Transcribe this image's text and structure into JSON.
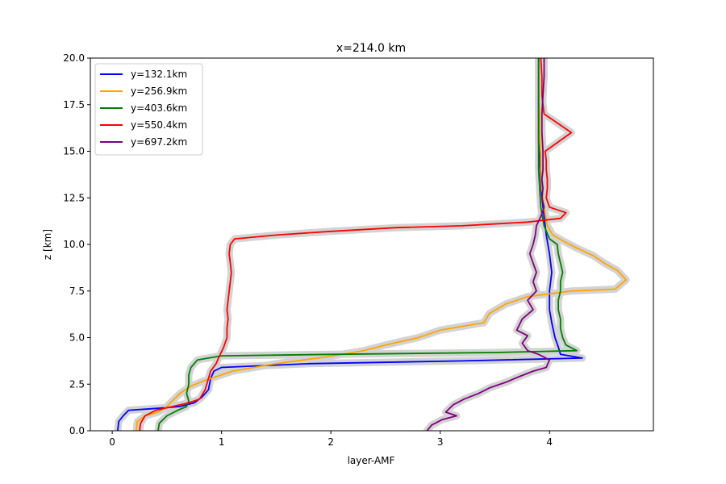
{
  "chart_data": {
    "type": "line",
    "title": "x=214.0 km",
    "xlabel": "layer-AMF",
    "ylabel": "z [km]",
    "xlim": [
      -0.2,
      4.95
    ],
    "ylim": [
      0,
      20
    ],
    "xticks": [
      0,
      1,
      2,
      3,
      4
    ],
    "yticks": [
      0.0,
      2.5,
      5.0,
      7.5,
      10.0,
      12.5,
      15.0,
      17.5,
      20.0
    ],
    "xtick_labels": [
      "0",
      "1",
      "2",
      "3",
      "4"
    ],
    "ytick_labels": [
      "0.0",
      "2.5",
      "5.0",
      "7.5",
      "10.0",
      "12.5",
      "15.0",
      "17.5",
      "20.0"
    ],
    "grid": false,
    "legend_position": "top-left",
    "shaded_band_color": "#d3d3d3",
    "series": [
      {
        "name": "y=132.1km",
        "color": "#0000ff",
        "points": [
          [
            0.05,
            0
          ],
          [
            0.06,
            0.5
          ],
          [
            0.1,
            0.8
          ],
          [
            0.15,
            1.1
          ],
          [
            0.4,
            1.2
          ],
          [
            0.62,
            1.3
          ],
          [
            0.75,
            1.5
          ],
          [
            0.82,
            1.8
          ],
          [
            0.88,
            2.2
          ],
          [
            0.9,
            2.8
          ],
          [
            0.93,
            3.2
          ],
          [
            1.0,
            3.4
          ],
          [
            1.8,
            3.6
          ],
          [
            3.2,
            3.75
          ],
          [
            4.3,
            3.9
          ],
          [
            4.1,
            4.1
          ],
          [
            4.08,
            4.5
          ],
          [
            4.05,
            5.0
          ],
          [
            4.02,
            5.8
          ],
          [
            4.0,
            6.5
          ],
          [
            4.0,
            7.5
          ],
          [
            4.02,
            8.5
          ],
          [
            4.0,
            9.5
          ],
          [
            3.97,
            10.5
          ],
          [
            3.95,
            11.5
          ],
          [
            3.93,
            12.5
          ],
          [
            3.92,
            13.5
          ],
          [
            3.91,
            14.5
          ],
          [
            3.9,
            15.5
          ],
          [
            3.9,
            16.5
          ],
          [
            3.9,
            17.5
          ],
          [
            3.9,
            18.5
          ],
          [
            3.9,
            20
          ]
        ]
      },
      {
        "name": "y=256.9km",
        "color": "#ffa500",
        "points": [
          [
            0.22,
            0
          ],
          [
            0.23,
            0.5
          ],
          [
            0.3,
            0.8
          ],
          [
            0.42,
            1.0
          ],
          [
            0.5,
            1.3
          ],
          [
            0.55,
            1.6
          ],
          [
            0.62,
            2.0
          ],
          [
            0.72,
            2.4
          ],
          [
            0.85,
            2.7
          ],
          [
            1.1,
            3.2
          ],
          [
            1.5,
            3.6
          ],
          [
            2.0,
            4.0
          ],
          [
            2.3,
            4.3
          ],
          [
            2.5,
            4.6
          ],
          [
            2.8,
            5.0
          ],
          [
            3.0,
            5.4
          ],
          [
            3.2,
            5.6
          ],
          [
            3.4,
            5.8
          ],
          [
            3.45,
            6.3
          ],
          [
            3.6,
            6.8
          ],
          [
            3.8,
            7.2
          ],
          [
            4.2,
            7.5
          ],
          [
            4.6,
            7.6
          ],
          [
            4.7,
            8.1
          ],
          [
            4.62,
            8.6
          ],
          [
            4.5,
            9.0
          ],
          [
            4.4,
            9.4
          ],
          [
            4.25,
            9.8
          ],
          [
            4.12,
            10.2
          ],
          [
            4.03,
            10.5
          ],
          [
            3.98,
            11.0
          ],
          [
            3.95,
            12.0
          ],
          [
            3.93,
            13.0
          ],
          [
            3.92,
            14.0
          ],
          [
            3.92,
            15.0
          ],
          [
            3.91,
            16.0
          ],
          [
            3.91,
            17.0
          ],
          [
            3.9,
            18.0
          ],
          [
            3.9,
            19.0
          ],
          [
            3.9,
            20
          ]
        ]
      },
      {
        "name": "y=403.6km",
        "color": "#008000",
        "points": [
          [
            0.42,
            0
          ],
          [
            0.43,
            0.4
          ],
          [
            0.5,
            0.8
          ],
          [
            0.6,
            1.1
          ],
          [
            0.68,
            1.3
          ],
          [
            0.7,
            1.6
          ],
          [
            0.68,
            2.0
          ],
          [
            0.7,
            2.5
          ],
          [
            0.7,
            3.0
          ],
          [
            0.72,
            3.4
          ],
          [
            0.78,
            3.8
          ],
          [
            1.0,
            4.02
          ],
          [
            2.0,
            4.1
          ],
          [
            3.5,
            4.2
          ],
          [
            4.25,
            4.3
          ],
          [
            4.15,
            4.6
          ],
          [
            4.12,
            5.0
          ],
          [
            4.1,
            5.5
          ],
          [
            4.1,
            6.0
          ],
          [
            4.08,
            6.5
          ],
          [
            4.08,
            7.0
          ],
          [
            4.1,
            7.5
          ],
          [
            4.1,
            8.0
          ],
          [
            4.12,
            8.5
          ],
          [
            4.1,
            9.0
          ],
          [
            4.08,
            9.5
          ],
          [
            4.07,
            10.0
          ],
          [
            4.0,
            10.3
          ],
          [
            3.95,
            11.0
          ],
          [
            3.92,
            12.0
          ],
          [
            3.91,
            13.0
          ],
          [
            3.9,
            14.0
          ],
          [
            3.9,
            15.0
          ],
          [
            3.9,
            16.0
          ],
          [
            3.9,
            17.0
          ],
          [
            3.9,
            18.0
          ],
          [
            3.9,
            19.0
          ],
          [
            3.9,
            20
          ]
        ]
      },
      {
        "name": "y=550.4km",
        "color": "#ff0000",
        "points": [
          [
            0.25,
            0
          ],
          [
            0.26,
            0.4
          ],
          [
            0.3,
            0.8
          ],
          [
            0.4,
            1.1
          ],
          [
            0.55,
            1.3
          ],
          [
            0.7,
            1.5
          ],
          [
            0.8,
            1.7
          ],
          [
            0.85,
            2.2
          ],
          [
            0.88,
            2.8
          ],
          [
            0.9,
            3.2
          ],
          [
            0.95,
            3.6
          ],
          [
            0.98,
            4.0
          ],
          [
            1.02,
            4.5
          ],
          [
            1.05,
            5.0
          ],
          [
            1.05,
            5.5
          ],
          [
            1.06,
            6.0
          ],
          [
            1.05,
            6.5
          ],
          [
            1.06,
            7.0
          ],
          [
            1.07,
            7.5
          ],
          [
            1.08,
            8.0
          ],
          [
            1.09,
            8.5
          ],
          [
            1.08,
            9.0
          ],
          [
            1.07,
            9.5
          ],
          [
            1.08,
            10.0
          ],
          [
            1.12,
            10.3
          ],
          [
            1.5,
            10.5
          ],
          [
            2.0,
            10.7
          ],
          [
            2.6,
            10.9
          ],
          [
            3.2,
            11.0
          ],
          [
            3.8,
            11.2
          ],
          [
            4.1,
            11.4
          ],
          [
            4.15,
            11.7
          ],
          [
            4.0,
            12.0
          ],
          [
            3.97,
            12.5
          ],
          [
            3.98,
            13.0
          ],
          [
            3.98,
            13.5
          ],
          [
            3.97,
            14.0
          ],
          [
            3.97,
            14.5
          ],
          [
            3.96,
            15.0
          ],
          [
            4.2,
            16.0
          ],
          [
            3.95,
            17.0
          ],
          [
            3.94,
            17.5
          ],
          [
            3.93,
            18.0
          ],
          [
            3.93,
            19.0
          ],
          [
            3.92,
            20
          ]
        ]
      },
      {
        "name": "y=697.2km",
        "color": "#800080",
        "points": [
          [
            2.88,
            0
          ],
          [
            2.92,
            0.3
          ],
          [
            3.02,
            0.6
          ],
          [
            3.15,
            0.8
          ],
          [
            3.05,
            1.0
          ],
          [
            3.12,
            1.4
          ],
          [
            3.22,
            1.7
          ],
          [
            3.35,
            2.0
          ],
          [
            3.45,
            2.3
          ],
          [
            3.6,
            2.6
          ],
          [
            3.72,
            2.9
          ],
          [
            3.85,
            3.2
          ],
          [
            3.97,
            3.4
          ],
          [
            4.0,
            3.8
          ],
          [
            3.9,
            4.1
          ],
          [
            3.8,
            4.3
          ],
          [
            3.75,
            4.7
          ],
          [
            3.8,
            5.1
          ],
          [
            3.7,
            5.4
          ],
          [
            3.75,
            6.0
          ],
          [
            3.85,
            6.5
          ],
          [
            3.8,
            7.0
          ],
          [
            3.88,
            7.5
          ],
          [
            3.85,
            8.0
          ],
          [
            3.88,
            8.5
          ],
          [
            3.85,
            9.0
          ],
          [
            3.82,
            9.5
          ],
          [
            3.85,
            10.0
          ],
          [
            3.87,
            10.5
          ],
          [
            3.88,
            11.0
          ],
          [
            3.92,
            11.5
          ],
          [
            3.95,
            12.0
          ],
          [
            3.93,
            12.5
          ],
          [
            3.94,
            13.0
          ],
          [
            3.93,
            13.5
          ],
          [
            3.94,
            14.0
          ],
          [
            3.94,
            15.0
          ],
          [
            3.93,
            16.0
          ],
          [
            3.93,
            17.0
          ],
          [
            3.94,
            18.0
          ],
          [
            3.95,
            19.0
          ],
          [
            3.95,
            20
          ]
        ]
      }
    ],
    "legend_entries": [
      "y=132.1km",
      "y=256.9km",
      "y=403.6km",
      "y=550.4km",
      "y=697.2km"
    ]
  }
}
